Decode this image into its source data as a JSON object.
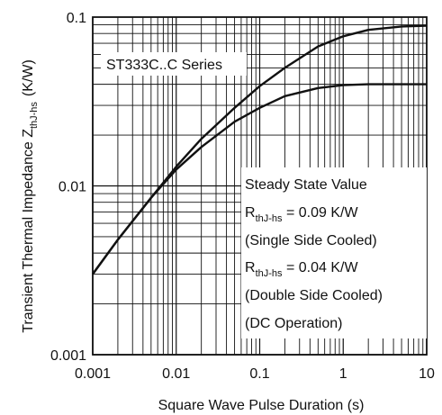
{
  "chart_data": {
    "type": "line",
    "x_scale": "log",
    "y_scale": "log",
    "xlim": [
      0.001,
      10
    ],
    "ylim": [
      0.001,
      0.1
    ],
    "grid": true,
    "x_ticks": [
      "0.001",
      "0.01",
      "0.1",
      "1",
      "10"
    ],
    "y_ticks": [
      "0.001",
      "0.01",
      "0.1"
    ],
    "xlabel": "Square Wave Pulse Duration (s)",
    "ylabel": {
      "main": "Transient Thermal Impedance Z",
      "subscript": "thJ-hs",
      "unit": "(K/W)"
    },
    "series_label": "ST333C..C Series",
    "series": [
      {
        "x": [
          0.001,
          0.002,
          0.005,
          0.01,
          0.02,
          0.05,
          0.1,
          0.2,
          0.5,
          1,
          2,
          5,
          10
        ],
        "values": [
          0.003,
          0.0048,
          0.0085,
          0.013,
          0.019,
          0.029,
          0.039,
          0.05,
          0.067,
          0.077,
          0.084,
          0.088,
          0.089
        ]
      },
      {
        "x": [
          0.001,
          0.002,
          0.005,
          0.01,
          0.02,
          0.05,
          0.1,
          0.2,
          0.5,
          1,
          2,
          5,
          10
        ],
        "values": [
          0.003,
          0.0048,
          0.0085,
          0.0125,
          0.017,
          0.024,
          0.029,
          0.034,
          0.038,
          0.0395,
          0.04,
          0.04,
          0.04
        ]
      }
    ],
    "annotations": {
      "heading": "Steady State Value",
      "single": {
        "symbol": "R",
        "subscript": "thJ-hs",
        "value": " = 0.09 K/W",
        "note": "(Single Side Cooled)"
      },
      "double": {
        "symbol": "R",
        "subscript": "thJ-hs",
        "value": " = 0.04 K/W",
        "note": "(Double Side Cooled)"
      },
      "operation": "(DC Operation)"
    }
  }
}
